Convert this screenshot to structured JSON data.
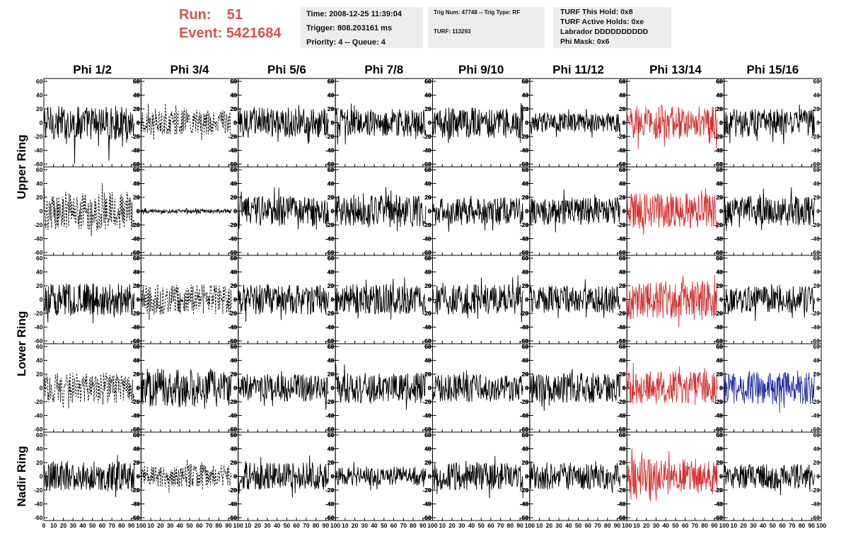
{
  "header": {
    "run_label": "Run:",
    "run_value": "51",
    "event_label": "Event:",
    "event_value": "5421684",
    "time": "Time: 2008-12-25 11:39:04",
    "trigger": "Trigger: 808.203161 ms",
    "priority": "Priority: 4 -- Queue: 4",
    "trig_num": "Trig Num: 47748 -- Trig Type: RF",
    "turf": "TURF: 113293",
    "turf_this_hold": "TURF This Hold: 0x8",
    "turf_active_holds": "TURF Active Holds: 0xe",
    "labrador": "Labrador DDDDDDDDDD",
    "phi_mask": "Phi Mask: 0x6"
  },
  "colors": {
    "header_accent": "#d9534f",
    "trace_default": "#000000",
    "trace_masked": "#d32f2f",
    "trace_triggered": "#1f2d9e"
  },
  "chart_data": {
    "type": "line",
    "columns": [
      "Phi 1/2",
      "Phi 3/4",
      "Phi 5/6",
      "Phi 7/8",
      "Phi 9/10",
      "Phi 11/12",
      "Phi 13/14",
      "Phi 15/16"
    ],
    "rows": [
      "Upper Ring",
      "Lower Ring",
      "Nadir Ring"
    ],
    "xlim": [
      0,
      100
    ],
    "ylim": [
      -60,
      60
    ],
    "y_ticks": [
      60,
      40,
      20,
      0,
      -20,
      -40,
      -60
    ],
    "x_ticks": [
      0,
      10,
      20,
      30,
      40,
      50,
      60,
      70,
      80,
      90,
      100
    ],
    "x_tick_labels": [
      "0",
      "10",
      "20",
      "30",
      "40",
      "50",
      "60",
      "70",
      "80",
      "90",
      "100"
    ],
    "panels": [
      [
        {
          "style": "solid",
          "color": "black",
          "amplitude": 25,
          "spike_min": -60
        },
        {
          "style": "dotted",
          "color": "black",
          "amplitude": 18
        },
        {
          "style": "solid",
          "color": "black",
          "amplitude": 22
        },
        {
          "style": "solid",
          "color": "black",
          "amplitude": 20
        },
        {
          "style": "solid",
          "color": "black",
          "amplitude": 22
        },
        {
          "style": "solid",
          "color": "black",
          "amplitude": 14
        },
        {
          "style": "solid",
          "color": "red",
          "amplitude": 24
        },
        {
          "style": "solid",
          "color": "black",
          "amplitude": 20
        }
      ],
      [
        {
          "style": "dotted",
          "color": "black",
          "amplitude": 28
        },
        {
          "style": "solid",
          "color": "black",
          "amplitude": 3
        },
        {
          "style": "solid",
          "color": "black",
          "amplitude": 22
        },
        {
          "style": "solid",
          "color": "black",
          "amplitude": 24
        },
        {
          "style": "solid",
          "color": "black",
          "amplitude": 20
        },
        {
          "style": "solid",
          "color": "black",
          "amplitude": 20
        },
        {
          "style": "solid",
          "color": "red",
          "amplitude": 26
        },
        {
          "style": "solid",
          "color": "black",
          "amplitude": 22
        }
      ],
      [
        {
          "style": "solid",
          "color": "black",
          "amplitude": 24
        },
        {
          "style": "dotted",
          "color": "black",
          "amplitude": 22
        },
        {
          "style": "solid",
          "color": "black",
          "amplitude": 22
        },
        {
          "style": "solid",
          "color": "black",
          "amplitude": 22
        },
        {
          "style": "solid",
          "color": "black",
          "amplitude": 22
        },
        {
          "style": "solid",
          "color": "black",
          "amplitude": 20
        },
        {
          "style": "solid",
          "color": "red",
          "amplitude": 28
        },
        {
          "style": "solid",
          "color": "black",
          "amplitude": 20
        }
      ],
      [
        {
          "style": "dotted",
          "color": "black",
          "amplitude": 22
        },
        {
          "style": "solid",
          "color": "black",
          "amplitude": 28
        },
        {
          "style": "solid",
          "color": "black",
          "amplitude": 20
        },
        {
          "style": "solid",
          "color": "black",
          "amplitude": 22
        },
        {
          "style": "solid",
          "color": "black",
          "amplitude": 20
        },
        {
          "style": "solid",
          "color": "black",
          "amplitude": 22
        },
        {
          "style": "solid",
          "color": "red",
          "amplitude": 24
        },
        {
          "style": "solid",
          "color": "blue",
          "amplitude": 24
        }
      ],
      [
        {
          "style": "solid",
          "color": "black",
          "amplitude": 22
        },
        {
          "style": "dotted",
          "color": "black",
          "amplitude": 16
        },
        {
          "style": "solid",
          "color": "black",
          "amplitude": 20
        },
        {
          "style": "solid",
          "color": "black",
          "amplitude": 14
        },
        {
          "style": "solid",
          "color": "black",
          "amplitude": 20
        },
        {
          "style": "solid",
          "color": "black",
          "amplitude": 20
        },
        {
          "style": "solid",
          "color": "red",
          "amplitude": 26
        },
        {
          "style": "solid",
          "color": "black",
          "amplitude": 18
        }
      ]
    ]
  }
}
